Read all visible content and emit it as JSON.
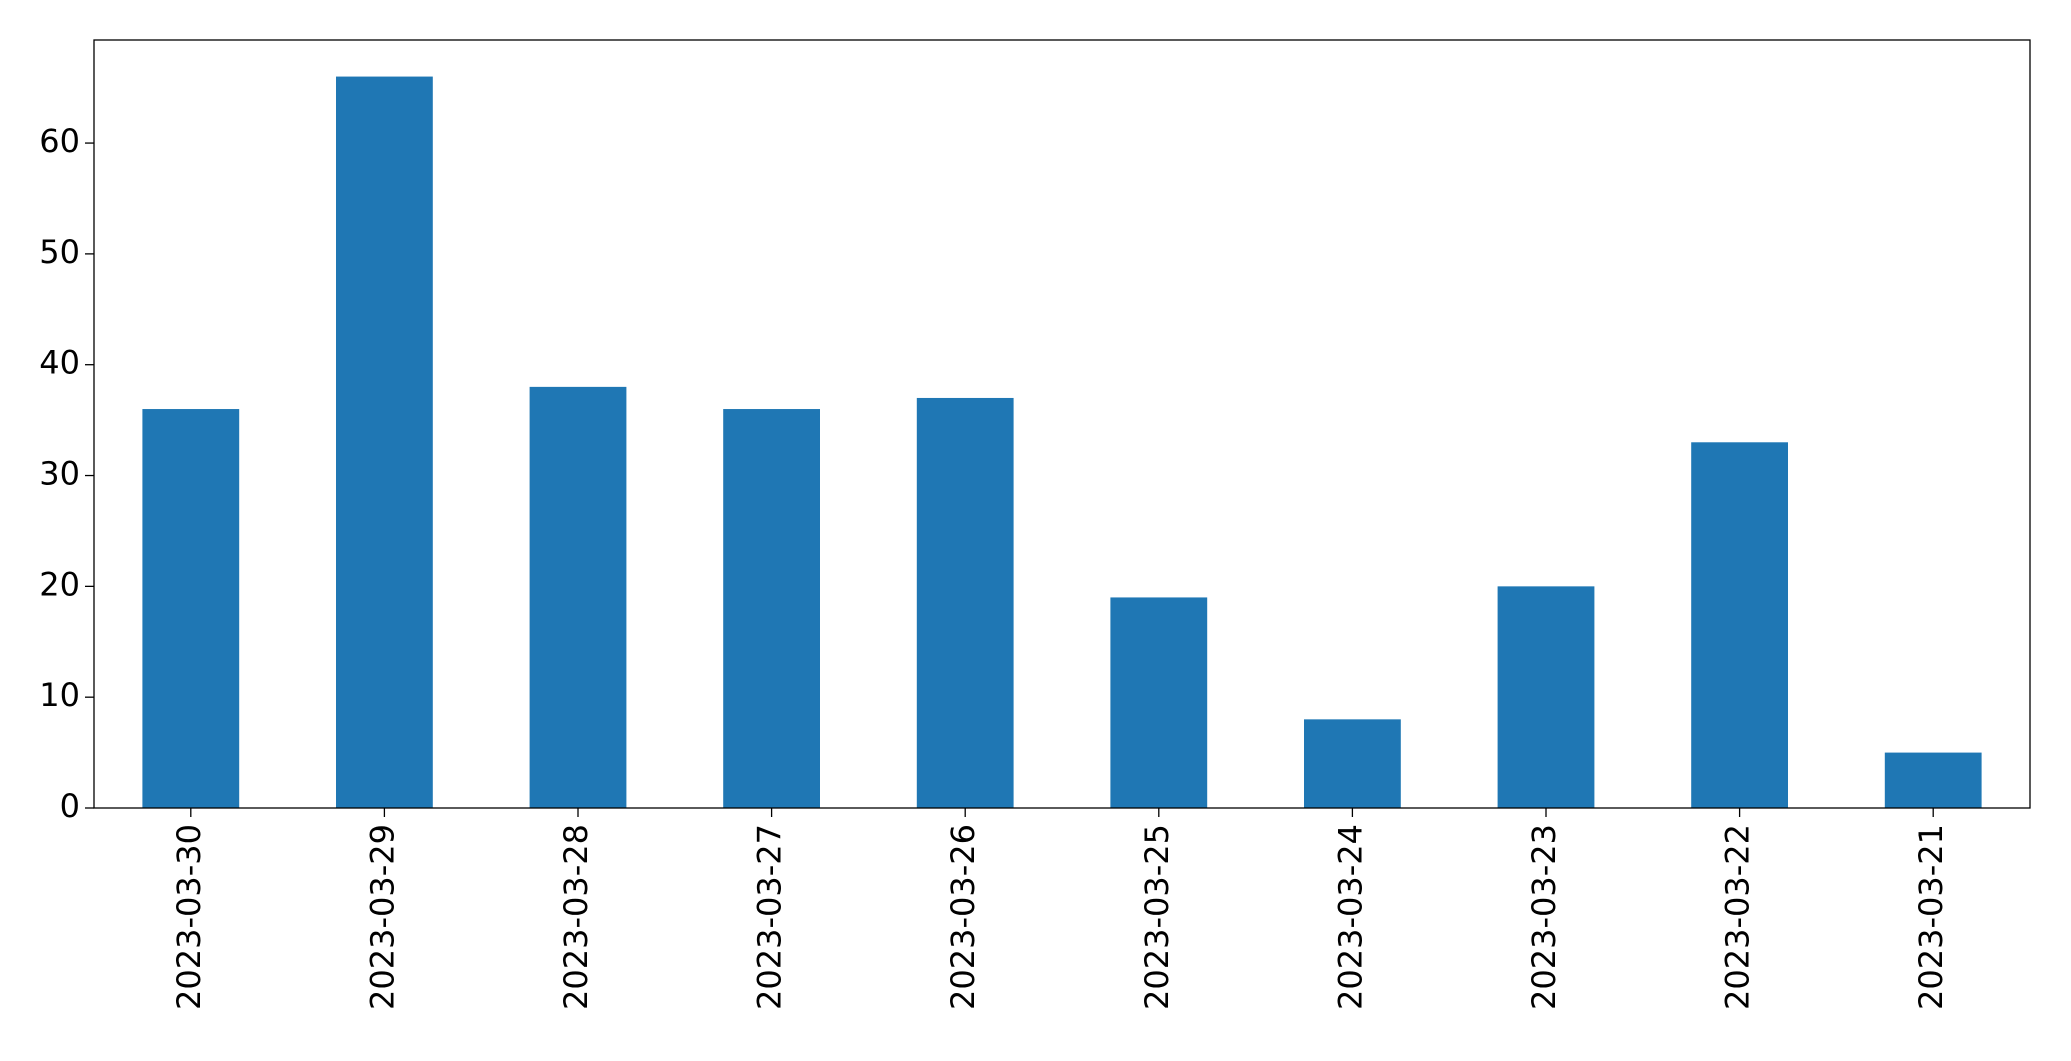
{
  "chart_data": {
    "type": "bar",
    "categories": [
      "2023-03-30",
      "2023-03-29",
      "2023-03-28",
      "2023-03-27",
      "2023-03-26",
      "2023-03-25",
      "2023-03-24",
      "2023-03-23",
      "2023-03-22",
      "2023-03-21"
    ],
    "values": [
      36,
      66,
      38,
      36,
      37,
      19,
      8,
      20,
      33,
      5
    ],
    "color": "#1f77b4",
    "ylim": [
      0,
      69.3
    ],
    "yticks": [
      0,
      10,
      20,
      30,
      40,
      50,
      60
    ],
    "grid": false
  }
}
